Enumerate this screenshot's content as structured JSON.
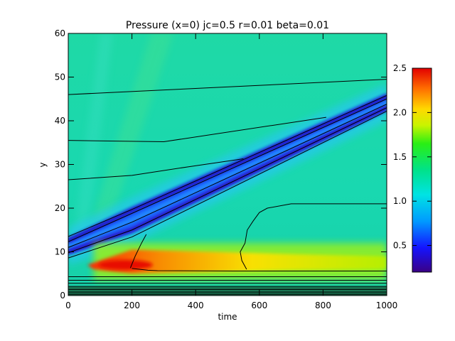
{
  "chart_data": [
    {
      "type": "heatmap",
      "title": "Pressure (x=0) jc=0.5 r=0.01 beta=0.01",
      "xlabel": "time",
      "ylabel": "y",
      "xlim": [
        0,
        1000
      ],
      "ylim": [
        0,
        60
      ],
      "x_ticks": [
        0,
        200,
        400,
        600,
        800,
        1000
      ],
      "y_ticks": [
        0,
        10,
        20,
        30,
        40,
        50,
        60
      ],
      "colorbar": {
        "vmin": 0.2,
        "vmax": 2.5,
        "ticks": [
          0.5,
          1.0,
          1.5,
          2.0,
          2.5
        ],
        "tick_labels": [
          "0.5",
          "1.0",
          "1.5",
          "2.0",
          "2.5"
        ],
        "colormap": "rainbow"
      },
      "background_value": 1.35,
      "features": [
        {
          "kind": "ridge",
          "description": "low-pressure band (upper edge)",
          "x": [
            0,
            200,
            1000
          ],
          "y": [
            12.5,
            19.5,
            45.5
          ],
          "value": 0.35
        },
        {
          "kind": "ridge",
          "description": "low-pressure band (lower edge)",
          "x": [
            0,
            200,
            1000
          ],
          "y": [
            10,
            15,
            43
          ],
          "value": 0.4
        },
        {
          "kind": "blob",
          "description": "high-pressure core",
          "x": 180,
          "y": 7,
          "value": 2.45
        },
        {
          "kind": "band",
          "description": "high-pressure layer",
          "x": [
            80,
            1000
          ],
          "y": 7.5,
          "value": 1.9
        }
      ],
      "contour_lines": [
        {
          "x": [
            0,
            1000
          ],
          "y": [
            46,
            49.5
          ]
        },
        {
          "x": [
            0,
            300,
            810
          ],
          "y": [
            35.5,
            35.2,
            40.8
          ]
        },
        {
          "x": [
            0,
            200,
            380,
            550
          ],
          "y": [
            26.5,
            27.5,
            29.5,
            31.3
          ]
        },
        {
          "x": [
            0,
            200,
            1000
          ],
          "y": [
            13.5,
            19.7,
            45.8
          ]
        },
        {
          "x": [
            0,
            200,
            1000
          ],
          "y": [
            12.3,
            18.8,
            45.0
          ]
        },
        {
          "x": [
            0,
            200,
            1000
          ],
          "y": [
            11.0,
            16.8,
            43.8
          ]
        },
        {
          "x": [
            0,
            200,
            1000
          ],
          "y": [
            9.8,
            15.0,
            43.0
          ]
        },
        {
          "x": [
            0,
            200,
            1000
          ],
          "y": [
            8.6,
            13.4,
            42.2
          ]
        },
        {
          "x": [
            200,
            250,
            280,
            520,
            660,
            700,
            1000
          ],
          "y": [
            6.2,
            5.8,
            5.7,
            5.6,
            5.6,
            5.6,
            5.6
          ]
        },
        {
          "x": [
            0,
            1000
          ],
          "y": [
            4.3,
            4.3
          ]
        },
        {
          "x": [
            0,
            1000
          ],
          "y": [
            3.5,
            3.5
          ]
        },
        {
          "x": [
            0,
            1000
          ],
          "y": [
            2.8,
            2.8
          ]
        },
        {
          "x": [
            0,
            1000
          ],
          "y": [
            2.1,
            2.1
          ]
        },
        {
          "x": [
            0,
            1000
          ],
          "y": [
            1.4,
            1.4
          ]
        },
        {
          "x": [
            0,
            1000
          ],
          "y": [
            0.8,
            0.8
          ]
        },
        {
          "x": [
            0,
            1000
          ],
          "y": [
            0.3,
            0.3
          ]
        }
      ]
    }
  ]
}
